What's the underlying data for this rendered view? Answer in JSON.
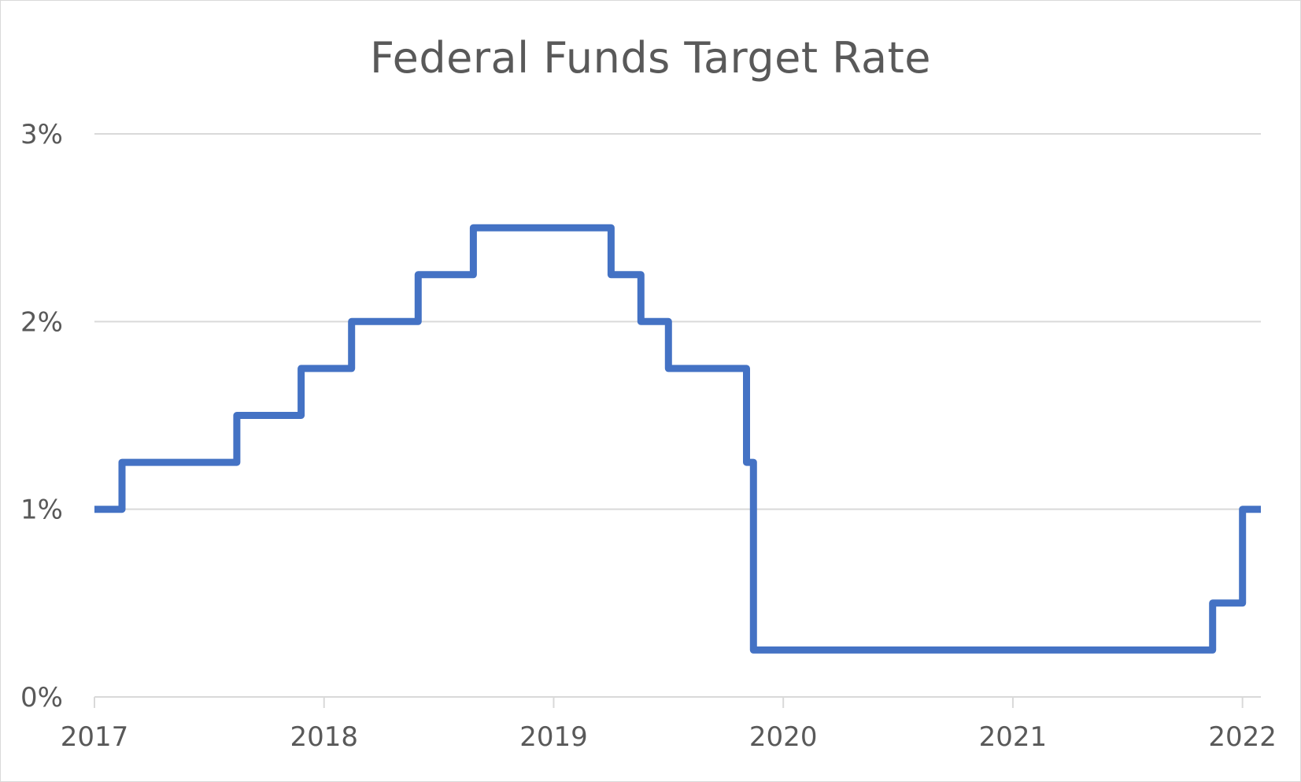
{
  "chart_data": {
    "type": "line",
    "title": "Federal Funds Target Rate",
    "xlabel": "",
    "ylabel": "",
    "x_ticks": [
      "2017",
      "2018",
      "2019",
      "2020",
      "2021",
      "2022"
    ],
    "y_ticks": [
      "0%",
      "1%",
      "2%",
      "3%"
    ],
    "xlim": [
      2017.0,
      2022.08
    ],
    "ylim": [
      0,
      3
    ],
    "grid": true,
    "legend": "none",
    "step": true,
    "series": [
      {
        "color": "#4472C4",
        "points": [
          {
            "x": 2017.0,
            "y": 1.0
          },
          {
            "x": 2017.12,
            "y": 1.25
          },
          {
            "x": 2017.62,
            "y": 1.5
          },
          {
            "x": 2017.9,
            "y": 1.75
          },
          {
            "x": 2018.12,
            "y": 2.0
          },
          {
            "x": 2018.41,
            "y": 2.25
          },
          {
            "x": 2018.65,
            "y": 2.5
          },
          {
            "x": 2019.25,
            "y": 2.25
          },
          {
            "x": 2019.38,
            "y": 2.0
          },
          {
            "x": 2019.5,
            "y": 1.75
          },
          {
            "x": 2019.84,
            "y": 1.25
          },
          {
            "x": 2019.87,
            "y": 0.25
          },
          {
            "x": 2021.87,
            "y": 0.5
          },
          {
            "x": 2022.0,
            "y": 1.0
          },
          {
            "x": 2022.08,
            "y": 1.0
          }
        ]
      }
    ]
  }
}
